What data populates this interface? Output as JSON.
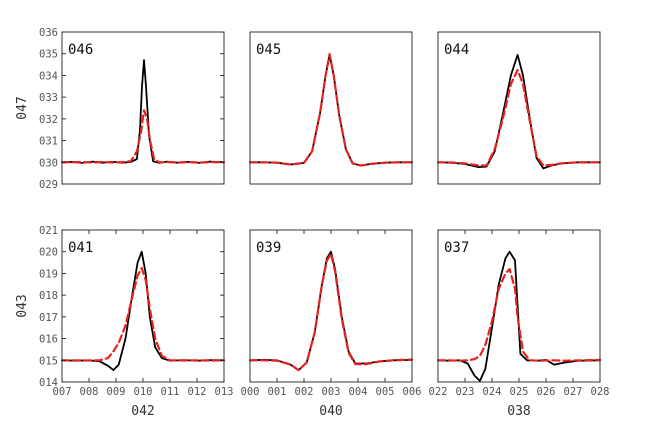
{
  "chart_data": [
    {
      "type": "line",
      "title": "046",
      "xlim": [
        0,
        8
      ],
      "ylim": [
        0,
        7
      ],
      "x_ticks": [],
      "x_tick_labels": [],
      "y_ticks": [
        0,
        1,
        2,
        3,
        4,
        5,
        6,
        7
      ],
      "y_tick_labels": [
        "029",
        "030",
        "031",
        "032",
        "033",
        "034",
        "035",
        "036"
      ],
      "xlabel": "",
      "ylabel": "047",
      "series": [
        {
          "color": "#000000",
          "dash": "solid",
          "points": [
            [
              0,
              1
            ],
            [
              0.5,
              1.02
            ],
            [
              1,
              0.97
            ],
            [
              1.5,
              1.03
            ],
            [
              2,
              0.98
            ],
            [
              2.5,
              1.02
            ],
            [
              3,
              0.98
            ],
            [
              3.4,
              1.02
            ],
            [
              3.7,
              1.15
            ],
            [
              3.85,
              2.5
            ],
            [
              3.95,
              4.5
            ],
            [
              4.05,
              5.7
            ],
            [
              4.15,
              4.5
            ],
            [
              4.3,
              2.2
            ],
            [
              4.5,
              1.05
            ],
            [
              4.8,
              0.97
            ],
            [
              5.2,
              1.03
            ],
            [
              5.7,
              0.98
            ],
            [
              6.2,
              1.02
            ],
            [
              6.8,
              0.97
            ],
            [
              7.3,
              1.03
            ],
            [
              8,
              1.0
            ]
          ]
        },
        {
          "color": "#e8201f",
          "dash": "dashed",
          "points": [
            [
              0,
              1
            ],
            [
              0.5,
              1.0
            ],
            [
              1,
              1.01
            ],
            [
              1.5,
              0.99
            ],
            [
              2,
              1.02
            ],
            [
              2.5,
              0.99
            ],
            [
              3,
              1.01
            ],
            [
              3.4,
              1.05
            ],
            [
              3.7,
              1.5
            ],
            [
              3.9,
              2.4
            ],
            [
              4.05,
              3.4
            ],
            [
              4.2,
              3.0
            ],
            [
              4.35,
              2.0
            ],
            [
              4.55,
              1.15
            ],
            [
              4.8,
              1.0
            ],
            [
              5.3,
              1.01
            ],
            [
              5.8,
              0.99
            ],
            [
              6.3,
              1.01
            ],
            [
              6.9,
              0.99
            ],
            [
              7.4,
              1.01
            ],
            [
              8,
              1.0
            ]
          ]
        }
      ]
    },
    {
      "type": "line",
      "title": "045",
      "xlim": [
        0,
        6
      ],
      "ylim": [
        0,
        7
      ],
      "x_ticks": [],
      "x_tick_labels": [],
      "y_ticks": [],
      "y_tick_labels": [],
      "xlabel": "",
      "ylabel": "",
      "series": [
        {
          "color": "#000000",
          "dash": "solid",
          "points": [
            [
              0,
              1
            ],
            [
              0.5,
              1.0
            ],
            [
              1,
              0.98
            ],
            [
              1.5,
              0.9
            ],
            [
              2,
              0.97
            ],
            [
              2.3,
              1.5
            ],
            [
              2.6,
              3.3
            ],
            [
              2.8,
              5.0
            ],
            [
              2.95,
              5.95
            ],
            [
              3.1,
              5.0
            ],
            [
              3.3,
              3.2
            ],
            [
              3.55,
              1.6
            ],
            [
              3.8,
              0.95
            ],
            [
              4.1,
              0.85
            ],
            [
              4.5,
              0.93
            ],
            [
              5,
              0.98
            ],
            [
              5.5,
              1.0
            ],
            [
              6,
              1.0
            ]
          ]
        },
        {
          "color": "#e8201f",
          "dash": "dashed",
          "points": [
            [
              0,
              1
            ],
            [
              0.5,
              1.0
            ],
            [
              1,
              0.98
            ],
            [
              1.5,
              0.9
            ],
            [
              2,
              0.97
            ],
            [
              2.3,
              1.5
            ],
            [
              2.6,
              3.3
            ],
            [
              2.8,
              5.0
            ],
            [
              2.95,
              5.98
            ],
            [
              3.1,
              5.0
            ],
            [
              3.3,
              3.2
            ],
            [
              3.55,
              1.6
            ],
            [
              3.8,
              0.95
            ],
            [
              4.1,
              0.85
            ],
            [
              4.5,
              0.93
            ],
            [
              5,
              0.98
            ],
            [
              5.5,
              1.0
            ],
            [
              6,
              1.0
            ]
          ]
        }
      ]
    },
    {
      "type": "line",
      "title": "044",
      "xlim": [
        0,
        6
      ],
      "ylim": [
        0,
        7
      ],
      "x_ticks": [],
      "x_tick_labels": [],
      "y_ticks": [],
      "y_tick_labels": [],
      "xlabel": "",
      "ylabel": "",
      "series": [
        {
          "color": "#000000",
          "dash": "solid",
          "points": [
            [
              0,
              1
            ],
            [
              0.5,
              0.98
            ],
            [
              1,
              0.92
            ],
            [
              1.5,
              0.78
            ],
            [
              1.8,
              0.8
            ],
            [
              2.1,
              1.5
            ],
            [
              2.4,
              3.2
            ],
            [
              2.7,
              5.0
            ],
            [
              2.95,
              5.95
            ],
            [
              3.15,
              5.0
            ],
            [
              3.4,
              3.0
            ],
            [
              3.65,
              1.2
            ],
            [
              3.9,
              0.72
            ],
            [
              4.2,
              0.85
            ],
            [
              4.6,
              0.95
            ],
            [
              5.2,
              1.0
            ],
            [
              6,
              1.0
            ]
          ]
        },
        {
          "color": "#e8201f",
          "dash": "dashed",
          "points": [
            [
              0,
              1
            ],
            [
              0.5,
              0.99
            ],
            [
              1,
              0.95
            ],
            [
              1.5,
              0.85
            ],
            [
              1.8,
              0.85
            ],
            [
              2.1,
              1.6
            ],
            [
              2.4,
              3.0
            ],
            [
              2.7,
              4.6
            ],
            [
              2.95,
              5.25
            ],
            [
              3.15,
              4.6
            ],
            [
              3.4,
              2.9
            ],
            [
              3.65,
              1.3
            ],
            [
              3.9,
              0.85
            ],
            [
              4.2,
              0.88
            ],
            [
              4.6,
              0.96
            ],
            [
              5.2,
              1.0
            ],
            [
              6,
              1.0
            ]
          ]
        }
      ]
    },
    {
      "type": "line",
      "title": "041",
      "xlim": [
        0,
        6
      ],
      "ylim": [
        0,
        7
      ],
      "x_ticks": [
        0,
        1,
        2,
        3,
        4,
        5,
        6
      ],
      "x_tick_labels": [
        "007",
        "008",
        "009",
        "010",
        "011",
        "012",
        "013"
      ],
      "y_ticks": [
        0,
        1,
        2,
        3,
        4,
        5,
        6,
        7
      ],
      "y_tick_labels": [
        "014",
        "015",
        "016",
        "017",
        "018",
        "019",
        "020",
        "021"
      ],
      "xlabel": "042",
      "ylabel": "043",
      "series": [
        {
          "color": "#000000",
          "dash": "solid",
          "points": [
            [
              0,
              1
            ],
            [
              0.5,
              0.98
            ],
            [
              1,
              1.0
            ],
            [
              1.4,
              0.95
            ],
            [
              1.7,
              0.75
            ],
            [
              1.9,
              0.55
            ],
            [
              2.1,
              0.8
            ],
            [
              2.35,
              2.0
            ],
            [
              2.6,
              4.0
            ],
            [
              2.8,
              5.5
            ],
            [
              2.95,
              6.0
            ],
            [
              3.1,
              5.0
            ],
            [
              3.25,
              3.0
            ],
            [
              3.45,
              1.6
            ],
            [
              3.7,
              1.1
            ],
            [
              4.0,
              0.98
            ],
            [
              4.5,
              1.01
            ],
            [
              5,
              0.98
            ],
            [
              5.5,
              1.01
            ],
            [
              6,
              1.0
            ]
          ]
        },
        {
          "color": "#e8201f",
          "dash": "dashed",
          "points": [
            [
              0,
              1
            ],
            [
              0.5,
              1.0
            ],
            [
              1,
              0.99
            ],
            [
              1.4,
              1.0
            ],
            [
              1.7,
              1.1
            ],
            [
              1.9,
              1.4
            ],
            [
              2.1,
              1.8
            ],
            [
              2.35,
              2.6
            ],
            [
              2.6,
              3.9
            ],
            [
              2.8,
              4.9
            ],
            [
              2.95,
              5.25
            ],
            [
              3.1,
              4.7
            ],
            [
              3.25,
              3.4
            ],
            [
              3.45,
              2.0
            ],
            [
              3.7,
              1.2
            ],
            [
              4.0,
              1.0
            ],
            [
              4.5,
              0.99
            ],
            [
              5,
              1.0
            ],
            [
              5.5,
              0.99
            ],
            [
              6,
              1.0
            ]
          ]
        }
      ]
    },
    {
      "type": "line",
      "title": "039",
      "xlim": [
        0,
        6
      ],
      "ylim": [
        0,
        7
      ],
      "x_ticks": [
        0,
        1,
        2,
        3,
        4,
        5,
        6
      ],
      "x_tick_labels": [
        "000",
        "001",
        "002",
        "003",
        "004",
        "005",
        "006"
      ],
      "y_ticks": [],
      "y_tick_labels": [],
      "xlabel": "040",
      "ylabel": "",
      "series": [
        {
          "color": "#000000",
          "dash": "solid",
          "points": [
            [
              0,
              1
            ],
            [
              0.5,
              1.02
            ],
            [
              1,
              1.0
            ],
            [
              1.5,
              0.8
            ],
            [
              1.8,
              0.55
            ],
            [
              2.1,
              0.9
            ],
            [
              2.4,
              2.3
            ],
            [
              2.65,
              4.4
            ],
            [
              2.85,
              5.7
            ],
            [
              3.0,
              6.0
            ],
            [
              3.15,
              5.2
            ],
            [
              3.4,
              3.0
            ],
            [
              3.65,
              1.4
            ],
            [
              3.9,
              0.85
            ],
            [
              4.3,
              0.85
            ],
            [
              4.8,
              0.95
            ],
            [
              5.3,
              1.0
            ],
            [
              6,
              1.02
            ]
          ]
        },
        {
          "color": "#e8201f",
          "dash": "dashed",
          "points": [
            [
              0,
              1
            ],
            [
              0.5,
              1.0
            ],
            [
              1,
              0.98
            ],
            [
              1.5,
              0.8
            ],
            [
              1.8,
              0.55
            ],
            [
              2.1,
              0.9
            ],
            [
              2.4,
              2.3
            ],
            [
              2.65,
              4.4
            ],
            [
              2.85,
              5.6
            ],
            [
              3.0,
              5.9
            ],
            [
              3.15,
              5.1
            ],
            [
              3.4,
              2.9
            ],
            [
              3.65,
              1.35
            ],
            [
              3.9,
              0.82
            ],
            [
              4.3,
              0.82
            ],
            [
              4.8,
              0.95
            ],
            [
              5.3,
              1.0
            ],
            [
              6,
              1.03
            ]
          ]
        }
      ]
    },
    {
      "type": "line",
      "title": "037",
      "xlim": [
        0,
        6
      ],
      "ylim": [
        0,
        7
      ],
      "x_ticks": [
        0,
        1,
        2,
        3,
        4,
        5,
        6
      ],
      "x_tick_labels": [
        "022",
        "023",
        "024",
        "025",
        "026",
        "027",
        "028"
      ],
      "y_ticks": [],
      "y_tick_labels": [],
      "xlabel": "038",
      "ylabel": "",
      "series": [
        {
          "color": "#000000",
          "dash": "solid",
          "points": [
            [
              0,
              1
            ],
            [
              0.4,
              0.98
            ],
            [
              0.8,
              1.0
            ],
            [
              1.1,
              0.85
            ],
            [
              1.35,
              0.3
            ],
            [
              1.55,
              0.05
            ],
            [
              1.75,
              0.6
            ],
            [
              2.0,
              2.5
            ],
            [
              2.25,
              4.5
            ],
            [
              2.5,
              5.7
            ],
            [
              2.65,
              6.0
            ],
            [
              2.85,
              5.6
            ],
            [
              2.95,
              3.5
            ],
            [
              3.05,
              1.3
            ],
            [
              3.3,
              1.0
            ],
            [
              3.7,
              0.98
            ],
            [
              4.0,
              1.02
            ],
            [
              4.3,
              0.8
            ],
            [
              4.7,
              0.9
            ],
            [
              5.2,
              0.98
            ],
            [
              6,
              1.0
            ]
          ]
        },
        {
          "color": "#e8201f",
          "dash": "dashed",
          "points": [
            [
              0,
              1
            ],
            [
              0.4,
              1.0
            ],
            [
              0.8,
              0.98
            ],
            [
              1.1,
              1.0
            ],
            [
              1.35,
              1.05
            ],
            [
              1.55,
              1.2
            ],
            [
              1.75,
              1.7
            ],
            [
              2.0,
              2.8
            ],
            [
              2.25,
              4.3
            ],
            [
              2.5,
              5.0
            ],
            [
              2.65,
              5.2
            ],
            [
              2.85,
              4.3
            ],
            [
              2.95,
              3.0
            ],
            [
              3.15,
              1.4
            ],
            [
              3.4,
              1.0
            ],
            [
              3.8,
              0.98
            ],
            [
              4.2,
              1.0
            ],
            [
              4.7,
              0.98
            ],
            [
              5.3,
              1.0
            ],
            [
              6,
              1.02
            ]
          ]
        }
      ]
    }
  ]
}
